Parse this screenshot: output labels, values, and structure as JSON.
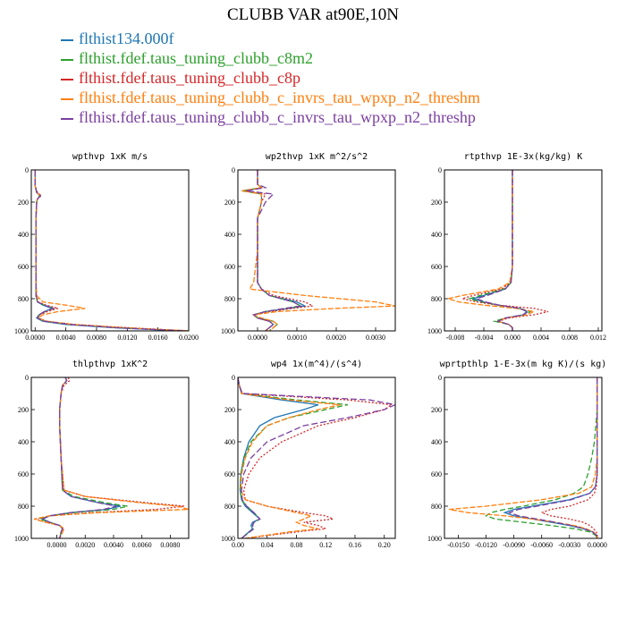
{
  "title": "CLUBB VAR at90E,10N",
  "legend": [
    {
      "label": "flthist134.000f",
      "color": "#1f77b4"
    },
    {
      "label": "flthist.fdef.taus_tuning_clubb_c8m2",
      "color": "#2ca02c"
    },
    {
      "label": "flthist.fdef.taus_tuning_clubb_c8p",
      "color": "#d62728"
    },
    {
      "label": "flthist.fdef.taus_tuning_clubb_c_invrs_tau_wpxp_n2_threshm",
      "color": "#ff7f0e"
    },
    {
      "label": "flthist.fdef.taus_tuning_clubb_c_invrs_tau_wpxp_n2_threshp",
      "color": "#7b3fa0"
    }
  ],
  "chart_data": [
    {
      "type": "line",
      "title": "wpthvp  1xK m/s",
      "xlim": [
        -0.0005,
        0.02
      ],
      "ylim": [
        1000,
        0
      ],
      "xticks": [
        "0.0000",
        "0.0040",
        "0.0080",
        "0.0120",
        "0.0160",
        "0.0200"
      ],
      "xtick_values": [
        0,
        0.004,
        0.008,
        0.012,
        0.016,
        0.02
      ],
      "yticks": [
        0,
        200,
        400,
        600,
        800,
        1000
      ],
      "y": [
        0,
        100,
        140,
        160,
        180,
        200,
        300,
        500,
        700,
        780,
        820,
        840,
        860,
        880,
        900,
        920,
        940,
        960,
        980,
        1000
      ],
      "series": [
        {
          "color": "#1f77b4",
          "values": [
            0,
            0,
            0.0002,
            0.0007,
            0.0003,
            0.0002,
            0.0001,
            0.0001,
            0.0001,
            0.0001,
            0.0003,
            0.001,
            0.0022,
            0.0012,
            0.0005,
            0.0002,
            0.001,
            0.004,
            0.01,
            0.019
          ]
        },
        {
          "color": "#2ca02c",
          "values": [
            0,
            0,
            0.0002,
            0.0006,
            0.0003,
            0.0002,
            0.0001,
            0.0001,
            0.0001,
            0.0001,
            0.0003,
            0.0012,
            0.0025,
            0.0013,
            0.0006,
            0.0003,
            0.0012,
            0.0045,
            0.011,
            0.02
          ]
        },
        {
          "color": "#d62728",
          "values": [
            0,
            0,
            0.0003,
            0.0008,
            0.0003,
            0.0002,
            0.0001,
            0.0001,
            0.0001,
            0.0002,
            0.0004,
            0.0014,
            0.003,
            0.0016,
            0.0006,
            0.0003,
            0.0015,
            0.005,
            0.012,
            0.02
          ]
        },
        {
          "color": "#ff7f0e",
          "values": [
            0,
            0,
            0.0002,
            0.0007,
            0.0003,
            0.0002,
            0.0001,
            0.0001,
            0.0001,
            0.0002,
            0.001,
            0.004,
            0.0065,
            0.003,
            0.001,
            0.0004,
            0.0015,
            0.005,
            0.0115,
            0.02
          ]
        },
        {
          "color": "#7b3fa0",
          "values": [
            0,
            0,
            0.0002,
            0.0007,
            0.0003,
            0.0002,
            0.0001,
            0.0001,
            0.0001,
            0.0001,
            0.0003,
            0.0012,
            0.0024,
            0.0012,
            0.0005,
            0.0003,
            0.0012,
            0.0045,
            0.0105,
            0.0195
          ]
        }
      ]
    },
    {
      "type": "line",
      "title": "wp2thvp  1xK m^2/s^2",
      "xlim": [
        -0.0005,
        0.0035
      ],
      "ylim": [
        1000,
        0
      ],
      "xticks": [
        "0.0000",
        "0.0010",
        "0.0020",
        "0.0030"
      ],
      "xtick_values": [
        0,
        0.001,
        0.002,
        0.003
      ],
      "yticks": [
        0,
        200,
        400,
        600,
        800,
        1000
      ],
      "y": [
        0,
        90,
        110,
        130,
        150,
        200,
        300,
        500,
        700,
        740,
        780,
        820,
        845,
        860,
        880,
        900,
        920,
        940,
        960,
        1000
      ],
      "series": [
        {
          "color": "#1f77b4",
          "values": [
            0,
            0,
            0.0001,
            -0.0003,
            0.0001,
            0.0001,
            0.0,
            0.0,
            0.0,
            0.0001,
            0.0003,
            0.001,
            0.0012,
            0.0008,
            0.0002,
            -0.0001,
            0.0,
            0.0003,
            0.0004,
            0.0002
          ]
        },
        {
          "color": "#2ca02c",
          "values": [
            0,
            0,
            0.0001,
            -0.0004,
            0.0001,
            0.0001,
            0.0,
            0.0,
            0.0,
            0.0001,
            0.0003,
            0.0009,
            0.0011,
            0.0007,
            0.0002,
            -0.0001,
            0.0,
            0.0004,
            0.0005,
            0.0003
          ]
        },
        {
          "color": "#d62728",
          "values": [
            0,
            0,
            0.0001,
            -0.0003,
            0.0002,
            0.0001,
            0.0,
            0.0,
            0.0,
            0.0001,
            0.0004,
            0.0012,
            0.0014,
            0.0009,
            0.0003,
            -0.0001,
            0.0,
            0.0003,
            0.0004,
            0.0002
          ]
        },
        {
          "color": "#ff7f0e",
          "values": [
            0,
            0,
            0.0001,
            -0.0004,
            0.0001,
            0.0001,
            0.0,
            0.0,
            -0.0001,
            -0.0002,
            0.0012,
            0.003,
            0.0035,
            0.002,
            0.0005,
            -0.0001,
            0.0001,
            0.0004,
            0.0005,
            0.0003
          ]
        },
        {
          "color": "#7b3fa0",
          "values": [
            0,
            0,
            0.0002,
            -0.0003,
            0.0004,
            0.0002,
            0.0,
            0.0,
            0.0,
            0.0001,
            0.0003,
            0.0009,
            0.0011,
            0.0007,
            0.0002,
            -0.0001,
            0.0,
            0.0003,
            0.0004,
            0.0002
          ]
        }
      ]
    },
    {
      "type": "line",
      "title": "rtpthvp  1E-3x(kg/kg) K",
      "xlim": [
        -0.0095,
        0.0125
      ],
      "ylim": [
        1000,
        0
      ],
      "xticks": [
        "-0.008",
        "-0.004",
        "0.000",
        "0.004",
        "0.008",
        "0.012"
      ],
      "xtick_values": [
        -0.008,
        -0.004,
        0,
        0.004,
        0.008,
        0.012
      ],
      "yticks": [
        0,
        200,
        400,
        600,
        800,
        1000
      ],
      "y": [
        0,
        200,
        400,
        600,
        700,
        740,
        780,
        800,
        820,
        840,
        860,
        880,
        900,
        920,
        940,
        960,
        980,
        1000
      ],
      "series": [
        {
          "color": "#1f77b4",
          "values": [
            0,
            0,
            0,
            0,
            -0.0002,
            -0.001,
            -0.004,
            -0.0055,
            -0.004,
            -0.002,
            0.001,
            0.002,
            0.0015,
            -0.001,
            -0.002,
            -0.0005,
            0,
            0
          ]
        },
        {
          "color": "#2ca02c",
          "values": [
            0,
            0,
            0,
            0,
            -0.0002,
            -0.0012,
            -0.0045,
            -0.006,
            -0.0045,
            -0.002,
            0.001,
            0.0025,
            0.0018,
            -0.001,
            -0.0025,
            -0.0005,
            0,
            0
          ]
        },
        {
          "color": "#d62728",
          "values": [
            0,
            0,
            0,
            0,
            -0.0003,
            -0.0015,
            -0.0055,
            -0.007,
            -0.005,
            -0.002,
            0.003,
            0.005,
            0.003,
            -0.0005,
            -0.002,
            -0.0005,
            0,
            0
          ]
        },
        {
          "color": "#ff7f0e",
          "values": [
            0,
            0,
            0,
            0,
            -0.0004,
            -0.002,
            -0.007,
            -0.009,
            -0.0075,
            -0.004,
            0.0005,
            0.003,
            0.002,
            -0.001,
            -0.002,
            -0.0005,
            0,
            0
          ]
        },
        {
          "color": "#7b3fa0",
          "values": [
            0,
            0,
            0,
            0,
            -0.0002,
            -0.001,
            -0.0035,
            -0.005,
            -0.0038,
            -0.0018,
            0.001,
            0.0022,
            0.0015,
            -0.001,
            -0.002,
            -0.0005,
            0,
            0
          ]
        }
      ]
    },
    {
      "type": "line",
      "title": "thlpthvp  1xK^2",
      "xlim": [
        -0.0018,
        0.0093
      ],
      "ylim": [
        1000,
        0
      ],
      "xticks": [
        "0.0000",
        "0.0020",
        "0.0040",
        "0.0060",
        "0.0080"
      ],
      "xtick_values": [
        0,
        0.002,
        0.004,
        0.006,
        0.008
      ],
      "yticks": [
        0,
        200,
        400,
        600,
        800,
        1000
      ],
      "y": [
        0,
        20,
        50,
        100,
        200,
        300,
        500,
        700,
        740,
        780,
        800,
        820,
        840,
        860,
        880,
        900,
        920,
        940,
        960,
        1000
      ],
      "series": [
        {
          "color": "#1f77b4",
          "values": [
            0.0006,
            0.0007,
            0.0004,
            0.0003,
            0.0002,
            0.0002,
            0.0003,
            0.0004,
            0.001,
            0.003,
            0.0045,
            0.0035,
            0.001,
            -0.0005,
            -0.001,
            -0.0005,
            0.0002,
            0.0004,
            0.0003,
            0.0002
          ]
        },
        {
          "color": "#2ca02c",
          "values": [
            0.0006,
            0.0007,
            0.0004,
            0.0003,
            0.0002,
            0.0002,
            0.0003,
            0.0004,
            0.0012,
            0.0035,
            0.005,
            0.004,
            0.0012,
            -0.0005,
            -0.0012,
            -0.0005,
            0.0002,
            0.0004,
            0.0003,
            0.0002
          ]
        },
        {
          "color": "#d62728",
          "values": [
            0.0008,
            0.0009,
            0.0005,
            0.0003,
            0.0002,
            0.0002,
            0.0003,
            0.0005,
            0.002,
            0.0065,
            0.009,
            0.007,
            0.0025,
            -0.0005,
            -0.0015,
            -0.0008,
            0.0002,
            0.0005,
            0.0004,
            0.0002
          ]
        },
        {
          "color": "#ff7f0e",
          "values": [
            0.0006,
            0.0007,
            0.0004,
            0.0003,
            0.0002,
            0.0002,
            0.0003,
            0.0005,
            0.002,
            0.006,
            0.0085,
            0.0093,
            0.003,
            -0.0005,
            -0.0016,
            -0.0008,
            0.0002,
            0.0005,
            0.0004,
            0.0002
          ]
        },
        {
          "color": "#7b3fa0",
          "values": [
            0.0006,
            0.0007,
            0.0004,
            0.0003,
            0.0002,
            0.0002,
            0.0003,
            0.0004,
            0.001,
            0.003,
            0.0042,
            0.0033,
            0.001,
            -0.0005,
            -0.001,
            -0.0005,
            0.0002,
            0.0004,
            0.0003,
            0.0002
          ]
        }
      ]
    },
    {
      "type": "line",
      "title": "wp4  1x(m^4)/(s^4)",
      "xlim": [
        0,
        0.215
      ],
      "ylim": [
        1000,
        0
      ],
      "xticks": [
        "0.00",
        "0.04",
        "0.08",
        "0.12",
        "0.16",
        "0.20"
      ],
      "xtick_values": [
        0,
        0.04,
        0.08,
        0.12,
        0.16,
        0.2
      ],
      "yticks": [
        0,
        200,
        400,
        600,
        800,
        1000
      ],
      "y": [
        0,
        50,
        100,
        140,
        170,
        200,
        250,
        300,
        400,
        500,
        600,
        700,
        760,
        800,
        840,
        860,
        880,
        900,
        920,
        940,
        960,
        1000
      ],
      "series": [
        {
          "color": "#1f77b4",
          "values": [
            0,
            0.002,
            0.005,
            0.06,
            0.11,
            0.09,
            0.05,
            0.03,
            0.015,
            0.008,
            0.004,
            0.003,
            0.005,
            0.01,
            0.02,
            0.025,
            0.03,
            0.02,
            0.018,
            0.02,
            0.015,
            0.005
          ]
        },
        {
          "color": "#2ca02c",
          "values": [
            0,
            0.002,
            0.005,
            0.08,
            0.15,
            0.12,
            0.07,
            0.04,
            0.018,
            0.009,
            0.004,
            0.003,
            0.005,
            0.012,
            0.022,
            0.026,
            0.03,
            0.022,
            0.02,
            0.022,
            0.016,
            0.005
          ]
        },
        {
          "color": "#d62728",
          "values": [
            0,
            0.002,
            0.006,
            0.15,
            0.21,
            0.2,
            0.16,
            0.11,
            0.06,
            0.03,
            0.015,
            0.008,
            0.01,
            0.04,
            0.09,
            0.12,
            0.13,
            0.09,
            0.11,
            0.12,
            0.08,
            0.01
          ]
        },
        {
          "color": "#ff7f0e",
          "values": [
            0,
            0.002,
            0.005,
            0.07,
            0.14,
            0.11,
            0.07,
            0.04,
            0.02,
            0.01,
            0.005,
            0.004,
            0.01,
            0.04,
            0.08,
            0.1,
            0.09,
            0.08,
            0.09,
            0.11,
            0.07,
            0.01
          ]
        },
        {
          "color": "#7b3fa0",
          "values": [
            0,
            0.002,
            0.006,
            0.18,
            0.215,
            0.2,
            0.15,
            0.09,
            0.04,
            0.018,
            0.008,
            0.005,
            0.006,
            0.012,
            0.022,
            0.026,
            0.03,
            0.022,
            0.02,
            0.022,
            0.016,
            0.005
          ]
        }
      ]
    },
    {
      "type": "line",
      "title": "wprtpthlp  1-E-3x(m kg K)/(s kg)",
      "xlim": [
        -0.0165,
        0.0005
      ],
      "ylim": [
        1000,
        0
      ],
      "xticks": [
        "-0.0150",
        "-0.0120",
        "-0.0090",
        "-0.0060",
        "-0.0030",
        "0.0000"
      ],
      "xtick_values": [
        -0.015,
        -0.012,
        -0.009,
        -0.006,
        -0.003,
        0
      ],
      "yticks": [
        0,
        200,
        400,
        600,
        800,
        1000
      ],
      "y": [
        0,
        200,
        400,
        500,
        600,
        680,
        720,
        760,
        800,
        820,
        840,
        860,
        880,
        900,
        920,
        940,
        960,
        980,
        1000
      ],
      "series": [
        {
          "color": "#1f77b4",
          "values": [
            0,
            0,
            0,
            0,
            0,
            -0.0002,
            -0.0008,
            -0.003,
            -0.007,
            -0.009,
            -0.01,
            -0.009,
            -0.007,
            -0.005,
            -0.003,
            -0.0015,
            -0.0005,
            -0.0001,
            0
          ]
        },
        {
          "color": "#2ca02c",
          "values": [
            0,
            0,
            -0.0003,
            -0.0006,
            -0.001,
            -0.0015,
            -0.0025,
            -0.0045,
            -0.008,
            -0.01,
            -0.0115,
            -0.012,
            -0.011,
            -0.008,
            -0.005,
            -0.0025,
            -0.0008,
            -0.0002,
            0
          ]
        },
        {
          "color": "#d62728",
          "values": [
            0,
            0,
            0,
            0,
            0,
            -0.0001,
            -0.0003,
            -0.001,
            -0.003,
            -0.005,
            -0.006,
            -0.005,
            -0.003,
            -0.0015,
            -0.0008,
            -0.0004,
            -0.0001,
            0,
            0
          ]
        },
        {
          "color": "#ff7f0e",
          "values": [
            0,
            0,
            0,
            0,
            -0.0002,
            -0.0006,
            -0.002,
            -0.006,
            -0.012,
            -0.016,
            -0.014,
            -0.01,
            -0.007,
            -0.0045,
            -0.0025,
            -0.0012,
            -0.0004,
            -0.0001,
            0
          ]
        },
        {
          "color": "#7b3fa0",
          "values": [
            0,
            0,
            0,
            0,
            0,
            -0.0002,
            -0.0008,
            -0.0028,
            -0.0065,
            -0.0085,
            -0.0095,
            -0.0085,
            -0.0065,
            -0.0045,
            -0.0028,
            -0.0014,
            -0.0005,
            -0.0001,
            0
          ]
        }
      ]
    }
  ]
}
